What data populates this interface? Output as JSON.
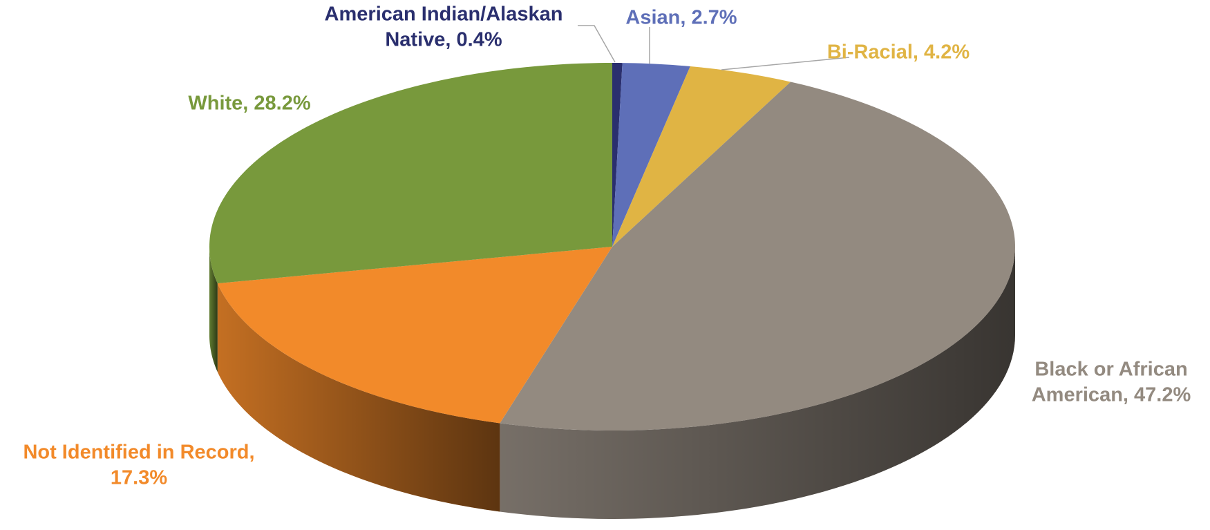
{
  "chart_data": {
    "type": "pie3d",
    "values": [
      0.4,
      2.7,
      4.2,
      47.2,
      17.3,
      28.2
    ],
    "value_labels": [
      [
        "American Indian/Alaskan",
        "Native, 0.4%"
      ],
      [
        "Asian, 2.7%"
      ],
      [
        "Bi-Racial, 4.2%"
      ],
      [
        "Black or African",
        "American, 47.2%"
      ],
      [
        "Not Identified in Record,",
        "17.3%"
      ],
      [
        "White, 28.2%"
      ]
    ],
    "colors": [
      "#2a2f6e",
      "#5e6fb8",
      "#e0b444",
      "#938a80",
      "#f28a2a",
      "#78993c"
    ]
  }
}
